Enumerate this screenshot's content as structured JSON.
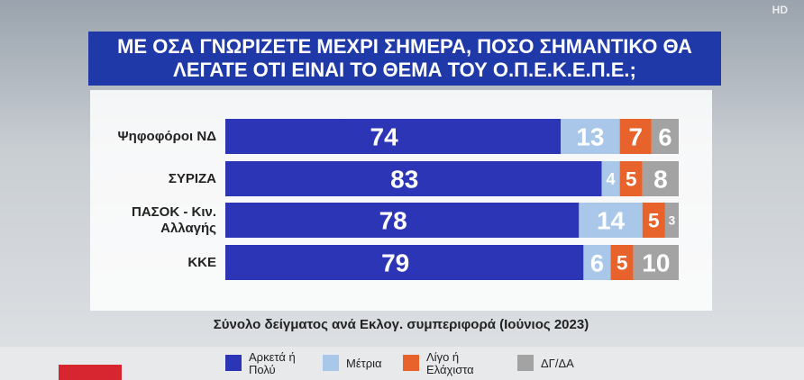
{
  "logo": "HD",
  "chart_data": {
    "type": "stacked_bar",
    "title": "ΜΕ ΟΣΑ ΓΝΩΡΙΖΕΤΕ ΜΕΧΡΙ ΣΗΜΕΡΑ, ΠΟΣΟ ΣΗΜΑΝΤΙΚΟ ΘΑ ΛΕΓΑΤΕ ΟΤΙ ΕΙΝΑΙ ΤΟ ΘΕΜΑ ΤΟΥ Ο.Π.Ε.Κ.Ε.Π.Ε.;",
    "subtitle": "Σύνολο δείγματος ανά Εκλογ. συμπεριφορά (Ιούνιος 2023)",
    "categories": [
      "Ψηφοφόροι ΝΔ",
      "ΣΥΡΙΖΑ",
      "ΠΑΣΟΚ - Κιν. Αλλαγής",
      "ΚΚΕ"
    ],
    "xlim": [
      0,
      100
    ],
    "series": [
      {
        "name": "Αρκετά ή Πολύ",
        "color": "#2b35b5",
        "values": [
          74,
          83,
          78,
          79
        ]
      },
      {
        "name": "Μέτρια",
        "color": "#a8c7e9",
        "values": [
          13,
          4,
          14,
          6
        ]
      },
      {
        "name": "Λίγο ή Ελάχιστα",
        "color": "#e8622b",
        "values": [
          7,
          5,
          5,
          5
        ]
      },
      {
        "name": "ΔΓ/ΔΑ",
        "color": "#a3a3a3",
        "values": [
          6,
          8,
          3,
          10
        ]
      }
    ]
  }
}
